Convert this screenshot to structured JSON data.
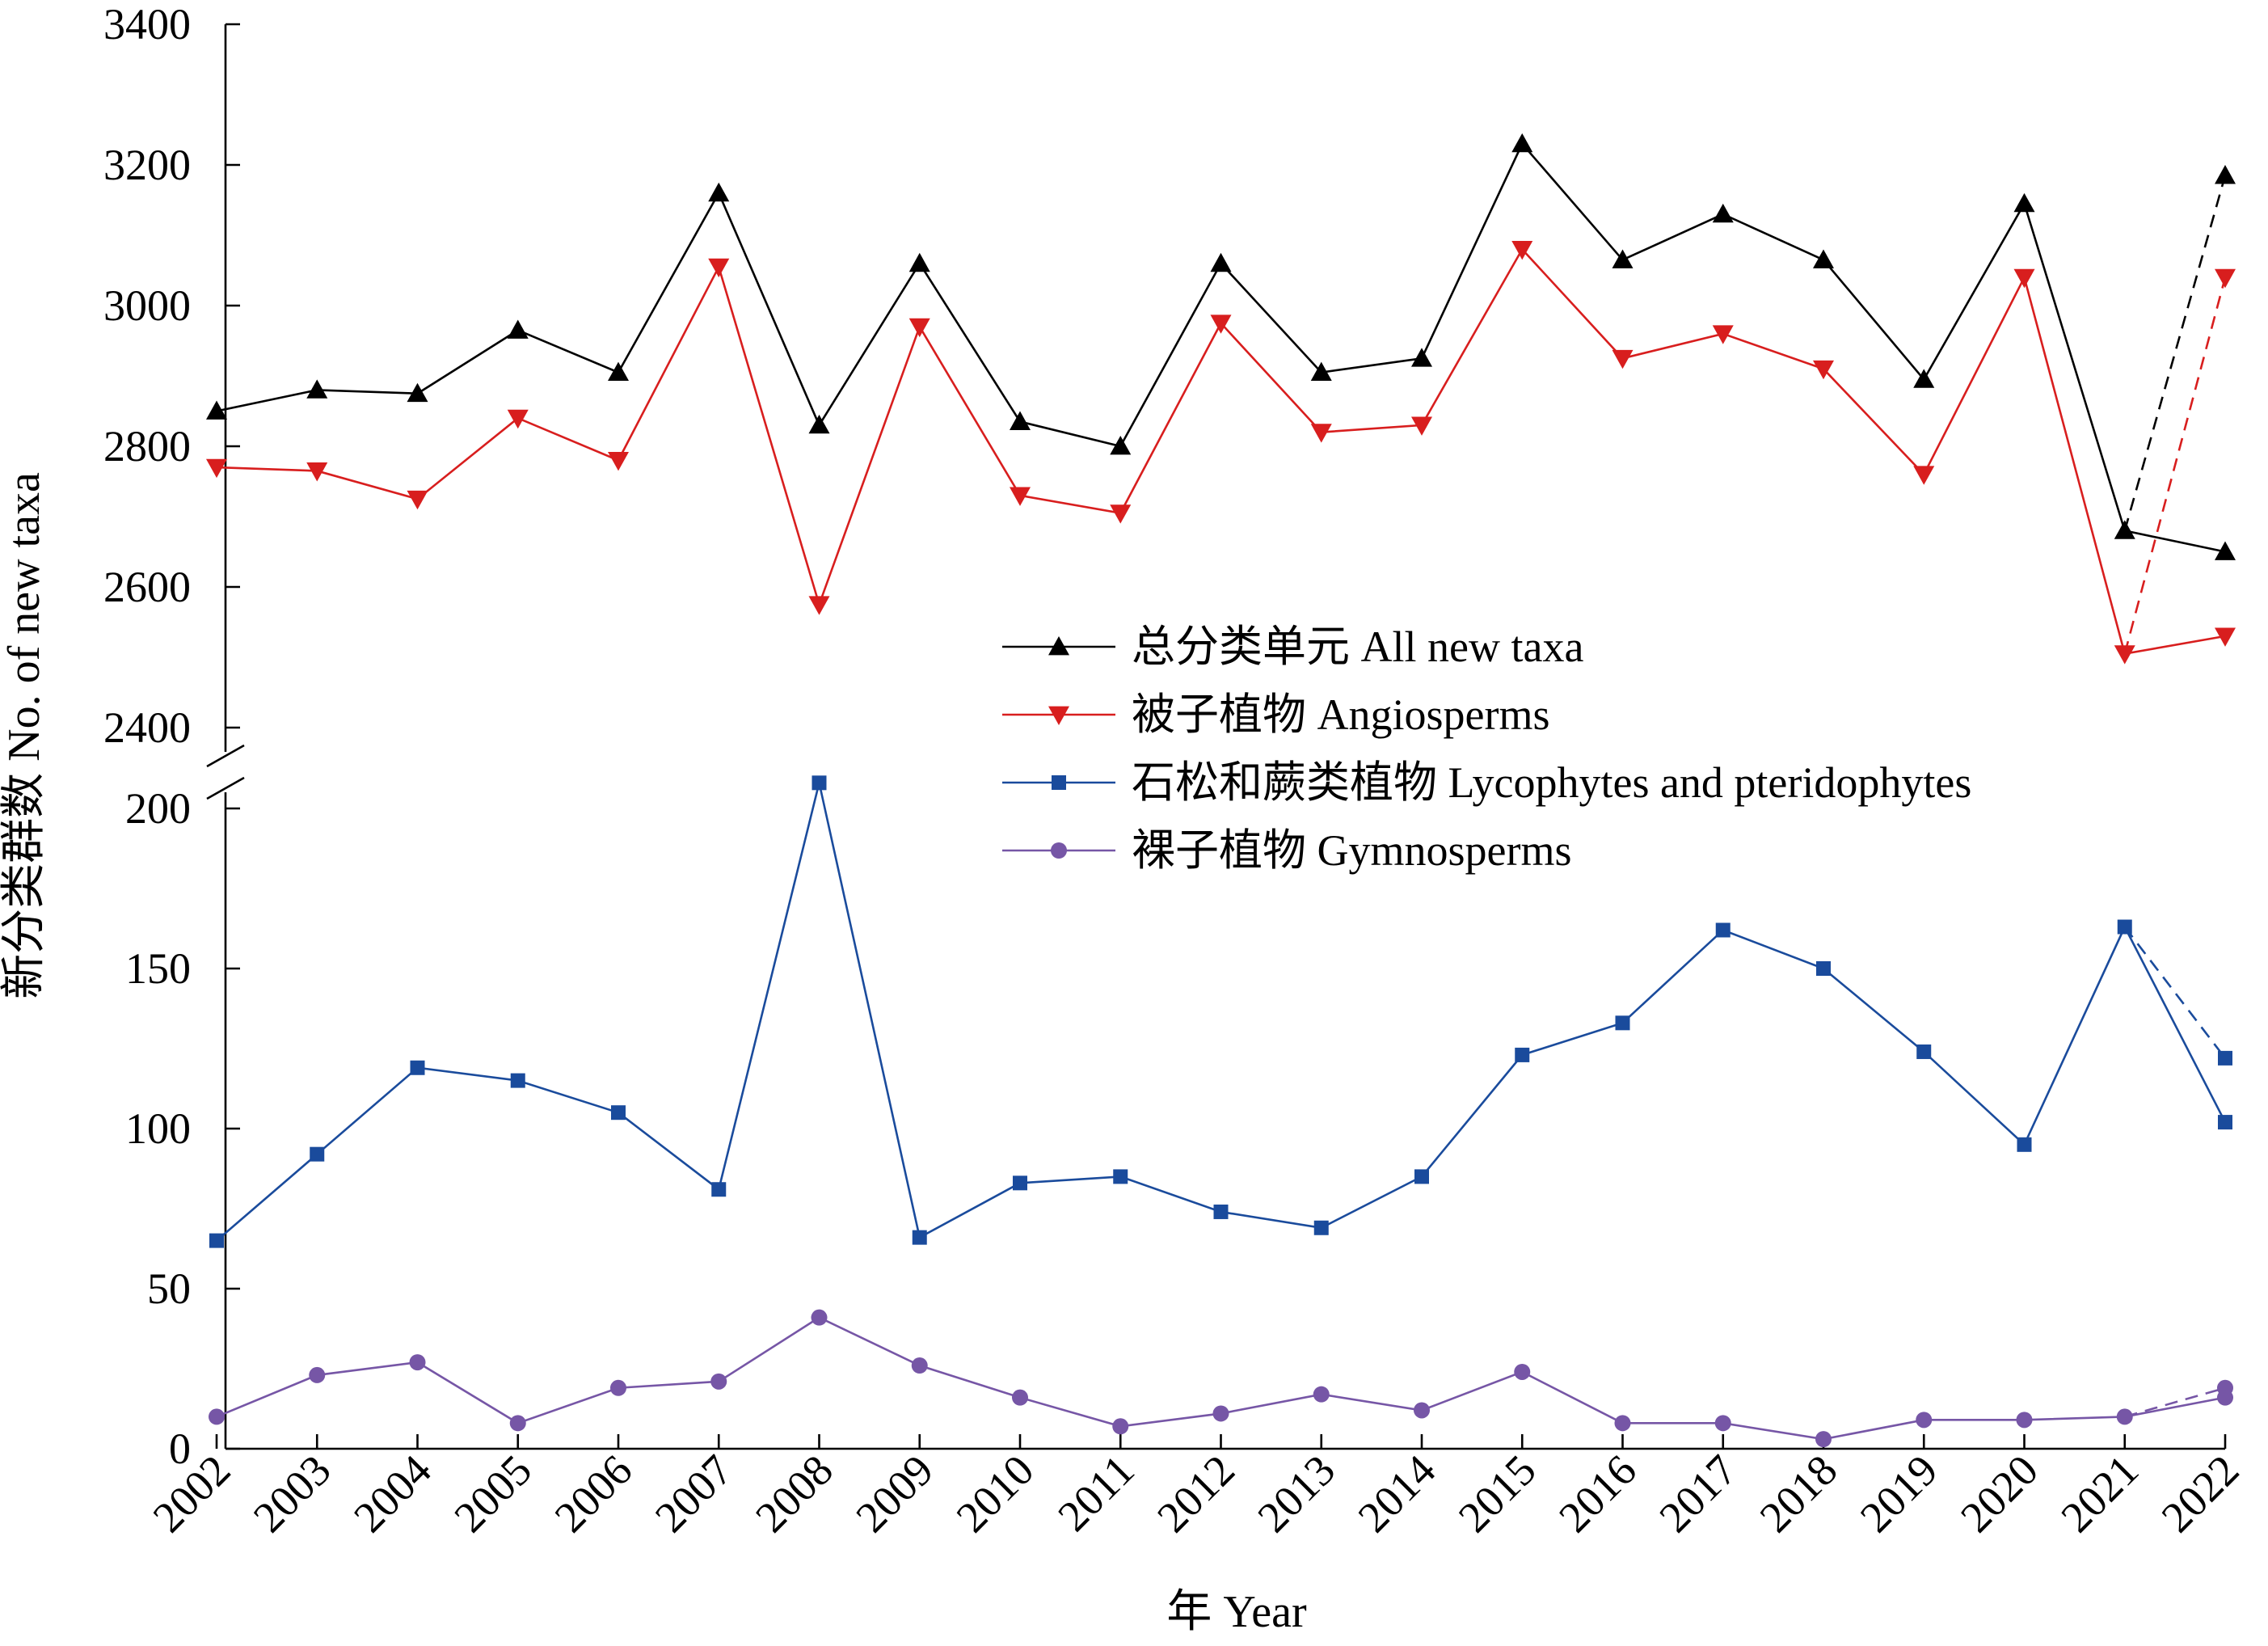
{
  "chart_data": {
    "type": "line",
    "xlabel": "年 Year",
    "ylabel": "新分类群数 No. of new taxa",
    "x": [
      "2002",
      "2003",
      "2004",
      "2005",
      "2006",
      "2007",
      "2008",
      "2009",
      "2010",
      "2011",
      "2012",
      "2013",
      "2014",
      "2015",
      "2016",
      "2017",
      "2018",
      "2019",
      "2020",
      "2021",
      "2022"
    ],
    "y_axis_broken": true,
    "upper_panel": {
      "ylim": [
        2400,
        3400
      ],
      "yticks": [
        "2400",
        "2600",
        "2800",
        "3000",
        "3200",
        "3400"
      ]
    },
    "lower_panel": {
      "ylim": [
        0,
        210
      ],
      "yticks": [
        "0",
        "50",
        "100",
        "150",
        "200"
      ]
    },
    "legend_position": "center-right",
    "grid": false,
    "series": [
      {
        "name": "总分类单元 All new taxa",
        "panel": "upper",
        "marker": "triangle-up",
        "color": "#000000",
        "values": [
          2850,
          2880,
          2875,
          2965,
          2905,
          3160,
          2830,
          3060,
          2835,
          2800,
          3060,
          2905,
          2925,
          3230,
          3065,
          3130,
          3065,
          2895,
          3145,
          2680,
          2650
        ],
        "alt_2022_value": 3185
      },
      {
        "name": "被子植物 Angiosperms",
        "panel": "upper",
        "marker": "triangle-down",
        "color": "#d81e1e",
        "values": [
          2770,
          2765,
          2725,
          2840,
          2780,
          3055,
          2575,
          2970,
          2730,
          2705,
          2975,
          2820,
          2830,
          3080,
          2925,
          2960,
          2910,
          2760,
          3040,
          2505,
          2530
        ],
        "alt_2022_value": 3040
      },
      {
        "name": "石松和蕨类植物 Lycophytes and pteridophytes",
        "panel": "lower",
        "marker": "square",
        "color": "#1a4b9c",
        "values": [
          65,
          92,
          119,
          115,
          105,
          81,
          208,
          66,
          83,
          85,
          74,
          69,
          85,
          123,
          133,
          162,
          150,
          124,
          95,
          163,
          102
        ],
        "alt_2022_value": 122
      },
      {
        "name": "裸子植物 Gymnosperms",
        "panel": "lower",
        "marker": "circle",
        "color": "#7656a6",
        "values": [
          10,
          23,
          27,
          8,
          19,
          21,
          41,
          26,
          16,
          7,
          11,
          17,
          12,
          24,
          8,
          8,
          3,
          9,
          9,
          10,
          16
        ],
        "alt_2022_value": 19
      }
    ]
  }
}
